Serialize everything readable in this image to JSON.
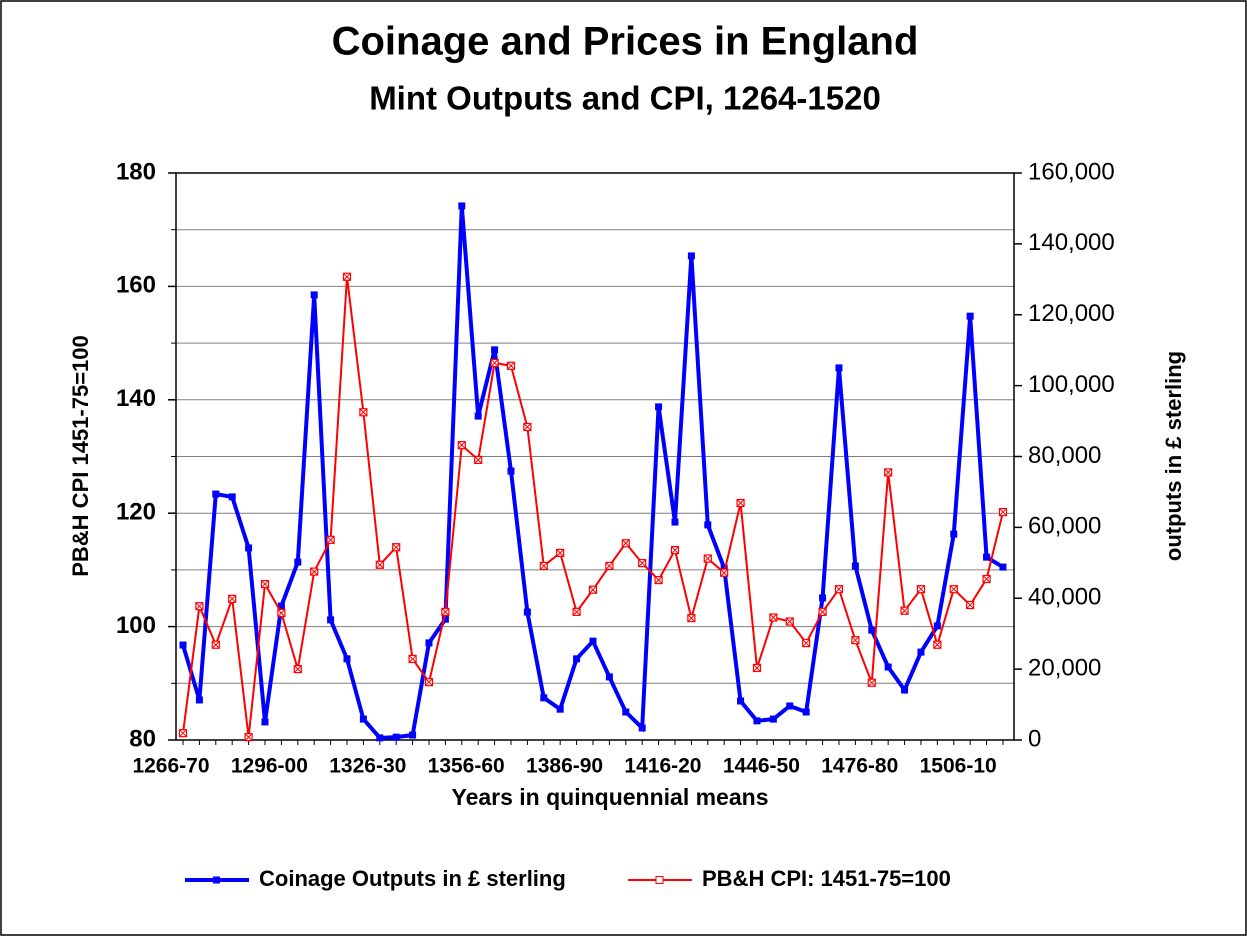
{
  "chart_data": {
    "type": "line",
    "title": "Coinage and Prices in England",
    "subtitle": "Mint Outputs and CPI, 1264-1520",
    "x_label": "Years in quinquennial means",
    "y_label": "PB&H CPI 1451-75=100",
    "y2_label": "outputs in £ sterling",
    "categories": [
      "1266-70",
      null,
      null,
      null,
      null,
      null,
      "1296-00",
      null,
      null,
      null,
      null,
      null,
      "1326-30",
      null,
      null,
      null,
      null,
      null,
      "1356-60",
      null,
      null,
      null,
      null,
      null,
      "1386-90",
      null,
      null,
      null,
      null,
      null,
      "1416-20",
      null,
      null,
      null,
      null,
      null,
      "1446-50",
      null,
      null,
      null,
      null,
      null,
      "1476-80",
      null,
      null,
      null,
      null,
      null,
      "1506-10",
      null,
      null
    ],
    "series": [
      {
        "name": "Coinage Outputs in £ sterling",
        "color": "#0000ff",
        "axis": "y2",
        "marker": "filled-square",
        "values": [
          26800,
          11300,
          69400,
          68600,
          54200,
          5100,
          37800,
          50200,
          125600,
          33900,
          22900,
          5900,
          600,
          800,
          1400,
          27400,
          34100,
          150700,
          91400,
          110100,
          75900,
          36100,
          11900,
          8700,
          22900,
          27900,
          17800,
          7900,
          3400,
          94000,
          61500,
          136600,
          60700,
          48500,
          11000,
          5400,
          5900,
          9600,
          7900,
          40100,
          105000,
          49100,
          31000,
          20600,
          14100,
          24800,
          32200,
          58100,
          119600,
          51600,
          48800
        ]
      },
      {
        "name": "PB&H CPI: 1451-75=100",
        "color": "#ff0000",
        "marker": "open-square",
        "values": [
          81.2,
          103.6,
          96.8,
          104.9,
          80.5,
          107.5,
          102.4,
          92.5,
          109.7,
          115.3,
          161.7,
          137.8,
          110.9,
          114.0,
          94.3,
          90.2,
          102.6,
          132.0,
          129.4,
          146.5,
          146.0,
          135.2,
          110.7,
          113.0,
          102.6,
          106.5,
          110.7,
          114.7,
          111.2,
          108.2,
          113.5,
          101.5,
          112.0,
          109.5,
          121.8,
          92.7,
          101.6,
          100.9,
          97.1,
          102.6,
          106.6,
          97.6,
          90.1,
          127.2,
          102.8,
          106.6,
          96.8,
          106.6,
          103.8,
          108.4,
          120.2
        ]
      }
    ],
    "ylim": [
      80,
      180
    ],
    "yticks": [
      80,
      100,
      120,
      140,
      160,
      180
    ],
    "yminor_ticks": [
      90,
      110,
      130,
      150,
      170
    ],
    "y2lim": [
      0,
      160000
    ],
    "y2ticks": [
      0,
      {
        "value": 20000,
        "label": "20,000"
      },
      {
        "value": 40000,
        "label": "40,000"
      },
      {
        "value": 60000,
        "label": "60,000"
      },
      {
        "value": 80000,
        "label": "80,000"
      },
      {
        "value": 100000,
        "label": "100,000"
      },
      {
        "value": 120000,
        "label": "120,000"
      },
      {
        "value": 140000,
        "label": "140,000"
      },
      {
        "value": 160000,
        "label": "160,000"
      }
    ],
    "grid": true,
    "legend": "bottom"
  }
}
